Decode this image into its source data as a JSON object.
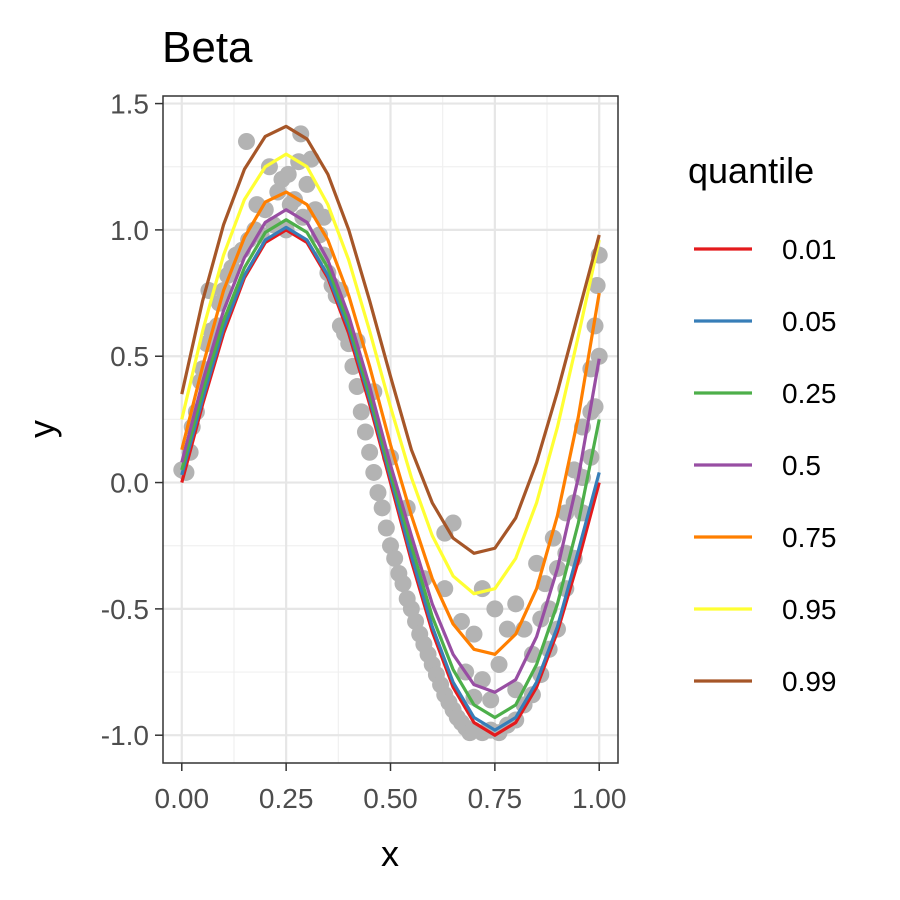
{
  "chart_data": {
    "type": "scatter",
    "title": "Beta",
    "xlabel": "x",
    "ylabel": "y",
    "xlim": [
      -0.045,
      1.045
    ],
    "ylim": [
      -1.11,
      1.53
    ],
    "x_ticks": [
      0.0,
      0.25,
      0.5,
      0.75,
      1.0
    ],
    "x_tick_labels": [
      "0.00",
      "0.25",
      "0.50",
      "0.75",
      "1.00"
    ],
    "y_ticks": [
      -1.0,
      -0.5,
      0.0,
      0.5,
      1.0,
      1.5
    ],
    "y_tick_labels": [
      "-1.0",
      "-0.5",
      "0.0",
      "0.5",
      "1.0",
      "1.5"
    ],
    "grid": true,
    "legend": {
      "title": "quantile",
      "placement": "right",
      "entries": [
        "0.01",
        "0.05",
        "0.25",
        "0.5",
        "0.75",
        "0.95",
        "0.99"
      ]
    },
    "point_color": "#b3b3b3",
    "points": [
      {
        "x": 0.0,
        "y": 0.05
      },
      {
        "x": 0.01,
        "y": 0.04
      },
      {
        "x": 0.02,
        "y": 0.12
      },
      {
        "x": 0.025,
        "y": 0.22
      },
      {
        "x": 0.035,
        "y": 0.28
      },
      {
        "x": 0.045,
        "y": 0.4
      },
      {
        "x": 0.05,
        "y": 0.45
      },
      {
        "x": 0.06,
        "y": 0.55
      },
      {
        "x": 0.065,
        "y": 0.76
      },
      {
        "x": 0.07,
        "y": 0.6
      },
      {
        "x": 0.085,
        "y": 0.62
      },
      {
        "x": 0.09,
        "y": 0.71
      },
      {
        "x": 0.1,
        "y": 0.76
      },
      {
        "x": 0.11,
        "y": 0.82
      },
      {
        "x": 0.12,
        "y": 0.85
      },
      {
        "x": 0.13,
        "y": 0.9
      },
      {
        "x": 0.145,
        "y": 0.92
      },
      {
        "x": 0.155,
        "y": 1.35
      },
      {
        "x": 0.16,
        "y": 0.96
      },
      {
        "x": 0.175,
        "y": 1.0
      },
      {
        "x": 0.18,
        "y": 1.1
      },
      {
        "x": 0.19,
        "y": 0.98
      },
      {
        "x": 0.2,
        "y": 1.08
      },
      {
        "x": 0.21,
        "y": 1.25
      },
      {
        "x": 0.22,
        "y": 1.02
      },
      {
        "x": 0.23,
        "y": 1.15
      },
      {
        "x": 0.24,
        "y": 1.2
      },
      {
        "x": 0.25,
        "y": 1.0
      },
      {
        "x": 0.255,
        "y": 1.22
      },
      {
        "x": 0.26,
        "y": 1.1
      },
      {
        "x": 0.27,
        "y": 1.12
      },
      {
        "x": 0.28,
        "y": 1.27
      },
      {
        "x": 0.285,
        "y": 1.38
      },
      {
        "x": 0.29,
        "y": 1.05
      },
      {
        "x": 0.3,
        "y": 1.18
      },
      {
        "x": 0.31,
        "y": 1.28
      },
      {
        "x": 0.32,
        "y": 1.08
      },
      {
        "x": 0.33,
        "y": 0.98
      },
      {
        "x": 0.34,
        "y": 0.9
      },
      {
        "x": 0.35,
        "y": 0.83
      },
      {
        "x": 0.36,
        "y": 0.78
      },
      {
        "x": 0.37,
        "y": 0.74
      },
      {
        "x": 0.38,
        "y": 0.62
      },
      {
        "x": 0.39,
        "y": 0.59
      },
      {
        "x": 0.4,
        "y": 0.55
      },
      {
        "x": 0.41,
        "y": 0.46
      },
      {
        "x": 0.42,
        "y": 0.38
      },
      {
        "x": 0.43,
        "y": 0.28
      },
      {
        "x": 0.44,
        "y": 0.2
      },
      {
        "x": 0.45,
        "y": 0.12
      },
      {
        "x": 0.46,
        "y": 0.04
      },
      {
        "x": 0.47,
        "y": -0.04
      },
      {
        "x": 0.48,
        "y": -0.1
      },
      {
        "x": 0.49,
        "y": -0.18
      },
      {
        "x": 0.5,
        "y": -0.25
      },
      {
        "x": 0.51,
        "y": -0.3
      },
      {
        "x": 0.52,
        "y": -0.36
      },
      {
        "x": 0.53,
        "y": -0.4
      },
      {
        "x": 0.54,
        "y": -0.46
      },
      {
        "x": 0.55,
        "y": -0.5
      },
      {
        "x": 0.56,
        "y": -0.55
      },
      {
        "x": 0.57,
        "y": -0.6
      },
      {
        "x": 0.58,
        "y": -0.64
      },
      {
        "x": 0.59,
        "y": -0.68
      },
      {
        "x": 0.6,
        "y": -0.72
      },
      {
        "x": 0.61,
        "y": -0.76
      },
      {
        "x": 0.62,
        "y": -0.8
      },
      {
        "x": 0.63,
        "y": -0.84
      },
      {
        "x": 0.64,
        "y": -0.87
      },
      {
        "x": 0.65,
        "y": -0.9
      },
      {
        "x": 0.66,
        "y": -0.93
      },
      {
        "x": 0.67,
        "y": -0.95
      },
      {
        "x": 0.68,
        "y": -0.97
      },
      {
        "x": 0.69,
        "y": -0.99
      },
      {
        "x": 0.7,
        "y": -0.98
      },
      {
        "x": 0.72,
        "y": -0.99
      },
      {
        "x": 0.74,
        "y": -0.98
      },
      {
        "x": 0.76,
        "y": -0.99
      },
      {
        "x": 0.78,
        "y": -0.96
      },
      {
        "x": 0.8,
        "y": -0.94
      },
      {
        "x": 0.82,
        "y": -0.88
      },
      {
        "x": 0.84,
        "y": -0.84
      },
      {
        "x": 0.86,
        "y": -0.76
      },
      {
        "x": 0.88,
        "y": -0.66
      },
      {
        "x": 0.9,
        "y": -0.58
      },
      {
        "x": 0.92,
        "y": -0.42
      },
      {
        "x": 0.94,
        "y": -0.3
      },
      {
        "x": 0.96,
        "y": -0.12
      },
      {
        "x": 0.98,
        "y": 0.1
      },
      {
        "x": 0.99,
        "y": 0.3
      },
      {
        "x": 1.0,
        "y": 0.5
      },
      {
        "x": 1.0,
        "y": 0.9
      },
      {
        "x": 0.995,
        "y": 0.78
      },
      {
        "x": 0.63,
        "y": -0.2
      },
      {
        "x": 0.65,
        "y": -0.16
      },
      {
        "x": 0.63,
        "y": -0.42
      },
      {
        "x": 0.67,
        "y": -0.55
      },
      {
        "x": 0.7,
        "y": -0.6
      },
      {
        "x": 0.72,
        "y": -0.42
      },
      {
        "x": 0.75,
        "y": -0.5
      },
      {
        "x": 0.78,
        "y": -0.58
      },
      {
        "x": 0.8,
        "y": -0.48
      },
      {
        "x": 0.82,
        "y": -0.58
      },
      {
        "x": 0.85,
        "y": -0.32
      },
      {
        "x": 0.87,
        "y": -0.4
      },
      {
        "x": 0.89,
        "y": -0.22
      },
      {
        "x": 0.92,
        "y": -0.12
      },
      {
        "x": 0.94,
        "y": 0.05
      },
      {
        "x": 0.96,
        "y": 0.22
      },
      {
        "x": 0.98,
        "y": 0.45
      },
      {
        "x": 0.99,
        "y": 0.62
      },
      {
        "x": 0.58,
        "y": -0.38
      },
      {
        "x": 0.54,
        "y": -0.1
      },
      {
        "x": 0.5,
        "y": 0.1
      },
      {
        "x": 0.46,
        "y": 0.36
      },
      {
        "x": 0.42,
        "y": 0.56
      },
      {
        "x": 0.38,
        "y": 0.76
      },
      {
        "x": 0.34,
        "y": 1.05
      },
      {
        "x": 0.72,
        "y": -0.78
      },
      {
        "x": 0.74,
        "y": -0.86
      },
      {
        "x": 0.76,
        "y": -0.72
      },
      {
        "x": 0.7,
        "y": -0.85
      },
      {
        "x": 0.68,
        "y": -0.75
      },
      {
        "x": 0.8,
        "y": -0.82
      },
      {
        "x": 0.84,
        "y": -0.68
      },
      {
        "x": 0.88,
        "y": -0.5
      },
      {
        "x": 0.92,
        "y": -0.28
      },
      {
        "x": 0.96,
        "y": 0.02
      },
      {
        "x": 0.98,
        "y": 0.28
      },
      {
        "x": 0.86,
        "y": -0.54
      },
      {
        "x": 0.9,
        "y": -0.34
      },
      {
        "x": 0.94,
        "y": -0.08
      }
    ],
    "series": [
      {
        "name": "0.01",
        "color": "#e41a1c",
        "x": [
          0,
          0.05,
          0.1,
          0.15,
          0.2,
          0.25,
          0.3,
          0.35,
          0.4,
          0.45,
          0.5,
          0.55,
          0.6,
          0.65,
          0.7,
          0.75,
          0.8,
          0.85,
          0.9,
          0.95,
          1.0
        ],
        "y": [
          0.0,
          0.31,
          0.59,
          0.81,
          0.95,
          1.0,
          0.95,
          0.81,
          0.59,
          0.31,
          0.0,
          -0.31,
          -0.59,
          -0.81,
          -0.95,
          -1.0,
          -0.95,
          -0.81,
          -0.59,
          -0.31,
          0.0
        ]
      },
      {
        "name": "0.05",
        "color": "#377eb8",
        "x": [
          0,
          0.05,
          0.1,
          0.15,
          0.2,
          0.25,
          0.3,
          0.35,
          0.4,
          0.45,
          0.5,
          0.55,
          0.6,
          0.65,
          0.7,
          0.75,
          0.8,
          0.85,
          0.9,
          0.95,
          1.0
        ],
        "y": [
          0.03,
          0.33,
          0.61,
          0.82,
          0.96,
          1.01,
          0.96,
          0.82,
          0.61,
          0.33,
          0.02,
          -0.29,
          -0.57,
          -0.79,
          -0.93,
          -0.98,
          -0.93,
          -0.79,
          -0.57,
          -0.27,
          0.04
        ]
      },
      {
        "name": "0.25",
        "color": "#4daf4a",
        "x": [
          0,
          0.05,
          0.1,
          0.15,
          0.2,
          0.25,
          0.3,
          0.35,
          0.4,
          0.45,
          0.5,
          0.55,
          0.6,
          0.65,
          0.7,
          0.75,
          0.8,
          0.85,
          0.9,
          0.95,
          1.0
        ],
        "y": [
          0.05,
          0.36,
          0.64,
          0.85,
          0.99,
          1.04,
          0.99,
          0.85,
          0.63,
          0.35,
          0.04,
          -0.25,
          -0.53,
          -0.74,
          -0.88,
          -0.93,
          -0.88,
          -0.72,
          -0.48,
          -0.16,
          0.25
        ]
      },
      {
        "name": "0.5",
        "color": "#984ea3",
        "x": [
          0,
          0.05,
          0.1,
          0.15,
          0.2,
          0.25,
          0.3,
          0.35,
          0.4,
          0.45,
          0.5,
          0.55,
          0.6,
          0.65,
          0.7,
          0.75,
          0.8,
          0.85,
          0.9,
          0.95,
          1.0
        ],
        "y": [
          0.08,
          0.4,
          0.68,
          0.89,
          1.03,
          1.08,
          1.03,
          0.88,
          0.66,
          0.38,
          0.07,
          -0.21,
          -0.48,
          -0.68,
          -0.8,
          -0.83,
          -0.78,
          -0.61,
          -0.34,
          0.02,
          0.49
        ]
      },
      {
        "name": "0.75",
        "color": "#ff7f00",
        "x": [
          0,
          0.05,
          0.1,
          0.15,
          0.2,
          0.25,
          0.3,
          0.35,
          0.4,
          0.45,
          0.5,
          0.55,
          0.6,
          0.65,
          0.7,
          0.75,
          0.8,
          0.85,
          0.9,
          0.95,
          1.0
        ],
        "y": [
          0.13,
          0.46,
          0.76,
          0.97,
          1.11,
          1.15,
          1.1,
          0.96,
          0.74,
          0.46,
          0.15,
          -0.13,
          -0.38,
          -0.56,
          -0.66,
          -0.68,
          -0.6,
          -0.42,
          -0.13,
          0.26,
          0.75
        ]
      },
      {
        "name": "0.95",
        "color": "#ffff33",
        "x": [
          0,
          0.05,
          0.1,
          0.15,
          0.2,
          0.25,
          0.3,
          0.35,
          0.4,
          0.45,
          0.5,
          0.55,
          0.6,
          0.65,
          0.7,
          0.75,
          0.8,
          0.85,
          0.9,
          0.95,
          1.0
        ],
        "y": [
          0.25,
          0.6,
          0.9,
          1.12,
          1.25,
          1.3,
          1.25,
          1.1,
          0.88,
          0.6,
          0.3,
          0.02,
          -0.21,
          -0.37,
          -0.44,
          -0.42,
          -0.3,
          -0.08,
          0.22,
          0.58,
          0.96
        ]
      },
      {
        "name": "0.99",
        "color": "#a65628",
        "x": [
          0,
          0.05,
          0.1,
          0.15,
          0.2,
          0.25,
          0.3,
          0.35,
          0.4,
          0.45,
          0.5,
          0.55,
          0.6,
          0.65,
          0.7,
          0.75,
          0.8,
          0.85,
          0.9,
          0.95,
          1.0
        ],
        "y": [
          0.35,
          0.72,
          1.02,
          1.24,
          1.37,
          1.41,
          1.36,
          1.22,
          1.0,
          0.72,
          0.42,
          0.13,
          -0.08,
          -0.22,
          -0.28,
          -0.26,
          -0.14,
          0.08,
          0.36,
          0.67,
          0.98
        ]
      }
    ]
  }
}
